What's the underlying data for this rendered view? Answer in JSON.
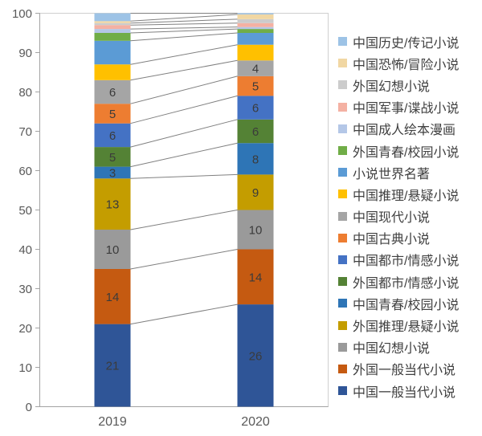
{
  "chart_data": {
    "type": "stacked-bar",
    "title": "",
    "categories": [
      "2019",
      "2020"
    ],
    "ylim": [
      0,
      100
    ],
    "yticks": [
      0,
      10,
      20,
      30,
      40,
      50,
      60,
      70,
      80,
      90,
      100
    ],
    "grid": "top-border-only",
    "legend_position": "right",
    "legend_order": "top-of-stack-first",
    "connector_lines": true,
    "series": [
      {
        "name": "中国一般当代小说",
        "color": "#2F5597",
        "values": [
          21,
          26
        ],
        "show_label": true
      },
      {
        "name": "外国一般当代小说",
        "color": "#C55A11",
        "values": [
          14,
          14
        ],
        "show_label": true
      },
      {
        "name": "中国幻想小说",
        "color": "#9A9A9A",
        "values": [
          10,
          10
        ],
        "show_label": true
      },
      {
        "name": "外国推理/悬疑小说",
        "color": "#C49D00",
        "values": [
          13,
          9
        ],
        "show_label": true
      },
      {
        "name": "中国青春/校园小说",
        "color": "#2E75B6",
        "values": [
          3,
          8
        ],
        "show_label": true
      },
      {
        "name": "外国都市/情感小说",
        "color": "#548235",
        "values": [
          5,
          6
        ],
        "show_label": true
      },
      {
        "name": "中国都市/情感小说",
        "color": "#4472C4",
        "values": [
          6,
          6
        ],
        "show_label": true
      },
      {
        "name": "中国古典小说",
        "color": "#ED7D31",
        "values": [
          5,
          5
        ],
        "show_label": true
      },
      {
        "name": "中国现代小说",
        "color": "#A5A5A5",
        "values": [
          6,
          4
        ],
        "show_label": true
      },
      {
        "name": "中国推理/悬疑小说",
        "color": "#FFC000",
        "values": [
          4,
          4
        ],
        "show_label": false
      },
      {
        "name": "小说世界名著",
        "color": "#5B9BD5",
        "values": [
          6,
          3
        ],
        "show_label": false
      },
      {
        "name": "外国青春/校园小说",
        "color": "#70AD47",
        "values": [
          2,
          1
        ],
        "show_label": false
      },
      {
        "name": "中国成人绘本漫画",
        "color": "#B4C7E7",
        "values": [
          1,
          0.5
        ],
        "show_label": false
      },
      {
        "name": "中国军事/谍战小说",
        "color": "#F4B1A3",
        "values": [
          1,
          1
        ],
        "show_label": false
      },
      {
        "name": "外国幻想小说",
        "color": "#CCCCCC",
        "values": [
          0.5,
          1
        ],
        "show_label": false
      },
      {
        "name": "中国恐怖/冒险小说",
        "color": "#F1D7A3",
        "values": [
          0.5,
          1.2
        ],
        "show_label": false
      },
      {
        "name": "中国历史/传记小说",
        "color": "#9DC3E6",
        "values": [
          2,
          0.3
        ],
        "show_label": false
      }
    ],
    "style": {
      "axis_line_color": "#A3A3A3",
      "plot_border_color": "#CFCFCF",
      "connector_color": "#808080",
      "tick_label_color": "#595959",
      "value_label_color": "#3B3B3B",
      "legend_text_color": "#404040",
      "background": "#FFFFFF"
    }
  }
}
